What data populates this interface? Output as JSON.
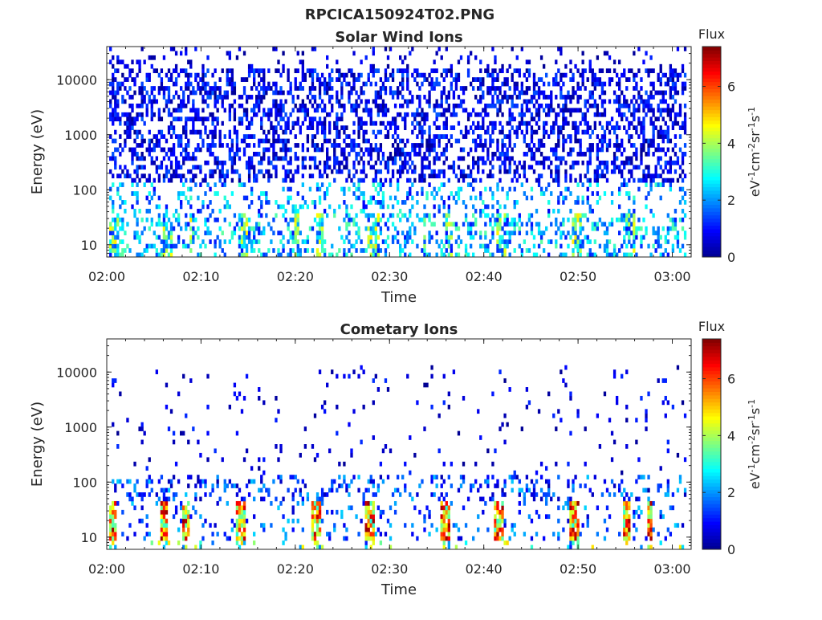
{
  "figure": {
    "suptitle": "RPCICA150924T02.PNG"
  },
  "colormap": [
    "#00008f",
    "#0000ff",
    "#0080ff",
    "#00ffff",
    "#80ff80",
    "#ffff00",
    "#ff8000",
    "#ff0000",
    "#800000"
  ],
  "chart_data": [
    {
      "type": "heatmap",
      "title": "Solar Wind Ions",
      "xlabel": "Time",
      "ylabel": "Energy (eV)",
      "x_ticks": [
        "02:00",
        "02:10",
        "02:20",
        "02:30",
        "02:40",
        "02:50",
        "03:00"
      ],
      "xlim": [
        "02:00",
        "03:02"
      ],
      "y_scale": "log",
      "y_ticks": [
        "10",
        "100",
        "1000",
        "10000"
      ],
      "ylim": [
        6,
        40000
      ],
      "colorbar": {
        "title": "Flux",
        "label": "eV-1cm-2sr-1s-1",
        "ticks": [
          "0",
          "2",
          "4",
          "6"
        ],
        "range": [
          0,
          7.4
        ]
      },
      "grid": false,
      "description_of_values": "sparse flux, mostly low (0-2) at high energies, moderate (2-5) bursts below ~30 eV"
    },
    {
      "type": "heatmap",
      "title": "Cometary Ions",
      "xlabel": "Time",
      "ylabel": "Energy (eV)",
      "x_ticks": [
        "02:00",
        "02:10",
        "02:20",
        "02:30",
        "02:40",
        "02:50",
        "03:00"
      ],
      "xlim": [
        "02:00",
        "03:02"
      ],
      "y_scale": "log",
      "y_ticks": [
        "10",
        "100",
        "1000",
        "10000"
      ],
      "ylim": [
        6,
        40000
      ],
      "colorbar": {
        "title": "Flux",
        "label": "eV-1cm-2sr-1s-1",
        "ticks": [
          "0",
          "2",
          "4",
          "6"
        ],
        "range": [
          0,
          7.4
        ]
      },
      "grid": false,
      "description_of_values": "sparse low flux above 100 eV, intense bursts (5-7) between ~8 and 40 eV"
    }
  ]
}
